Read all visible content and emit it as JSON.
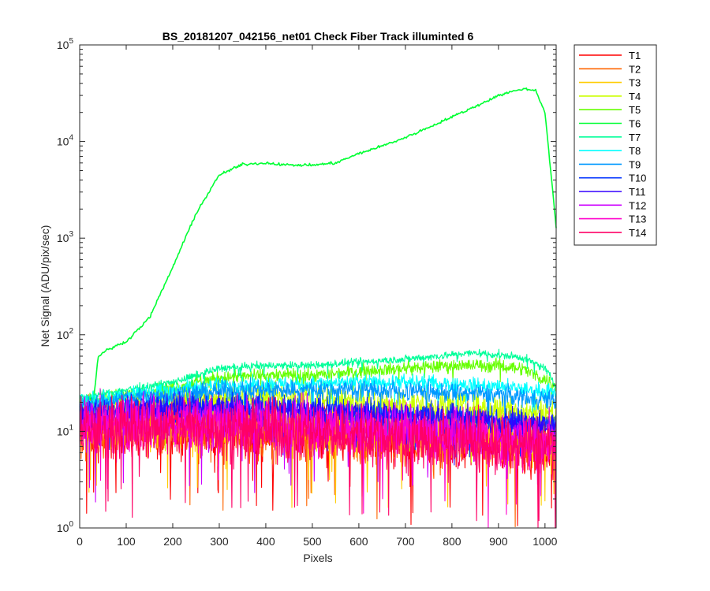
{
  "figure": {
    "background": "#ffffff",
    "axes_color": "#262626"
  },
  "chart_data": {
    "type": "line",
    "title": "BS_20181207_042156_net01    Check Fiber      Track illuminted 6",
    "xlabel": "Pixels",
    "ylabel": "Net Signal (ADU/pix/sec)",
    "xlim": [
      0,
      1024
    ],
    "ylim": [
      1,
      100000
    ],
    "yscale": "log",
    "grid": false,
    "legend_position": "outside-top-right",
    "xticks": [
      0,
      100,
      200,
      300,
      400,
      500,
      600,
      700,
      800,
      900,
      1000
    ],
    "xtick_labels": [
      "0",
      "100",
      "200",
      "300",
      "400",
      "500",
      "600",
      "700",
      "800",
      "900",
      "1000"
    ],
    "yticks": [
      1,
      10,
      100,
      1000,
      10000,
      100000
    ],
    "ytick_labels": [
      {
        "base": "10",
        "exp": "0"
      },
      {
        "base": "10",
        "exp": "1"
      },
      {
        "base": "10",
        "exp": "2"
      },
      {
        "base": "10",
        "exp": "3"
      },
      {
        "base": "10",
        "exp": "4"
      },
      {
        "base": "10",
        "exp": "5"
      }
    ],
    "series": [
      {
        "name": "T1",
        "color": "#ff0000",
        "x": [
          0,
          100,
          200,
          300,
          400,
          500,
          600,
          700,
          800,
          900,
          1024
        ],
        "y": [
          10,
          11,
          11,
          11,
          10,
          10,
          9,
          9,
          8,
          8,
          7
        ],
        "noisy": true,
        "spread": 0.45
      },
      {
        "name": "T2",
        "color": "#ff6600",
        "x": [
          0,
          100,
          200,
          300,
          400,
          500,
          600,
          700,
          800,
          900,
          1024
        ],
        "y": [
          10,
          11,
          11,
          11,
          10,
          10,
          9,
          9,
          8,
          8,
          7
        ],
        "noisy": true,
        "spread": 0.45
      },
      {
        "name": "T3",
        "color": "#ffcc00",
        "x": [
          0,
          100,
          200,
          300,
          400,
          500,
          600,
          700,
          800,
          900,
          1024
        ],
        "y": [
          11,
          12,
          12,
          12,
          12,
          11,
          11,
          10,
          10,
          9,
          8
        ],
        "noisy": true,
        "spread": 0.4
      },
      {
        "name": "T4",
        "color": "#ccff00",
        "x": [
          0,
          100,
          200,
          300,
          400,
          500,
          600,
          700,
          800,
          900,
          1024
        ],
        "y": [
          15,
          18,
          20,
          22,
          22,
          22,
          20,
          19,
          18,
          17,
          15
        ],
        "noisy": true,
        "spread": 0.25
      },
      {
        "name": "T5",
        "color": "#66ff00",
        "x": [
          0,
          100,
          200,
          250,
          300,
          400,
          500,
          600,
          700,
          800,
          900,
          950,
          1024
        ],
        "y": [
          20,
          24,
          28,
          32,
          36,
          38,
          38,
          42,
          45,
          48,
          48,
          45,
          30
        ],
        "noisy": true,
        "spread": 0.1
      },
      {
        "name": "T6",
        "color": "#00ff33",
        "x": [
          0,
          30,
          40,
          60,
          100,
          150,
          200,
          250,
          300,
          350,
          400,
          450,
          500,
          550,
          600,
          650,
          700,
          750,
          800,
          850,
          900,
          950,
          980,
          1000,
          1024
        ],
        "y": [
          22,
          22,
          60,
          70,
          85,
          150,
          500,
          1800,
          4500,
          5800,
          6000,
          5700,
          5700,
          6000,
          7500,
          9000,
          11000,
          14000,
          18000,
          23000,
          30000,
          35000,
          34000,
          20000,
          1300
        ],
        "noisy": false,
        "spread": 0.02
      },
      {
        "name": "T7",
        "color": "#00ff99",
        "x": [
          0,
          100,
          200,
          300,
          400,
          500,
          600,
          700,
          800,
          850,
          900,
          950,
          1000,
          1024
        ],
        "y": [
          22,
          27,
          32,
          45,
          48,
          48,
          52,
          56,
          62,
          65,
          62,
          58,
          45,
          30
        ],
        "noisy": true,
        "spread": 0.06
      },
      {
        "name": "T8",
        "color": "#00ffff",
        "x": [
          0,
          100,
          200,
          300,
          400,
          500,
          600,
          700,
          800,
          900,
          1024
        ],
        "y": [
          20,
          24,
          27,
          30,
          31,
          31,
          32,
          32,
          31,
          29,
          25
        ],
        "noisy": true,
        "spread": 0.12
      },
      {
        "name": "T9",
        "color": "#0099ff",
        "x": [
          0,
          100,
          200,
          300,
          400,
          500,
          600,
          700,
          800,
          900,
          1024
        ],
        "y": [
          18,
          22,
          24,
          26,
          27,
          27,
          27,
          26,
          25,
          24,
          21
        ],
        "noisy": true,
        "spread": 0.15
      },
      {
        "name": "T10",
        "color": "#0033ff",
        "x": [
          0,
          100,
          200,
          300,
          400,
          500,
          600,
          700,
          800,
          900,
          1024
        ],
        "y": [
          15,
          17,
          18,
          18,
          18,
          17,
          16,
          15,
          14,
          13,
          12
        ],
        "noisy": true,
        "spread": 0.2
      },
      {
        "name": "T11",
        "color": "#3300ff",
        "x": [
          0,
          100,
          200,
          300,
          400,
          500,
          600,
          700,
          800,
          900,
          1024
        ],
        "y": [
          14,
          16,
          17,
          17,
          16,
          16,
          15,
          14,
          13,
          12,
          11
        ],
        "noisy": true,
        "spread": 0.22
      },
      {
        "name": "T12",
        "color": "#cc00ff",
        "x": [
          0,
          100,
          200,
          300,
          400,
          500,
          600,
          700,
          800,
          900,
          1024
        ],
        "y": [
          12,
          13,
          13,
          13,
          13,
          12,
          11,
          10,
          10,
          9,
          8
        ],
        "noisy": true,
        "spread": 0.35
      },
      {
        "name": "T13",
        "color": "#ff00cc",
        "x": [
          0,
          100,
          200,
          300,
          400,
          500,
          600,
          700,
          800,
          900,
          1024
        ],
        "y": [
          11,
          12,
          12,
          12,
          11,
          11,
          10,
          9,
          9,
          8,
          7
        ],
        "noisy": true,
        "spread": 0.4
      },
      {
        "name": "T14",
        "color": "#ff0066",
        "x": [
          0,
          100,
          200,
          300,
          400,
          500,
          600,
          700,
          800,
          900,
          1024
        ],
        "y": [
          10,
          11,
          11,
          11,
          10,
          10,
          9,
          8,
          8,
          7,
          7
        ],
        "noisy": true,
        "spread": 0.45
      }
    ]
  }
}
